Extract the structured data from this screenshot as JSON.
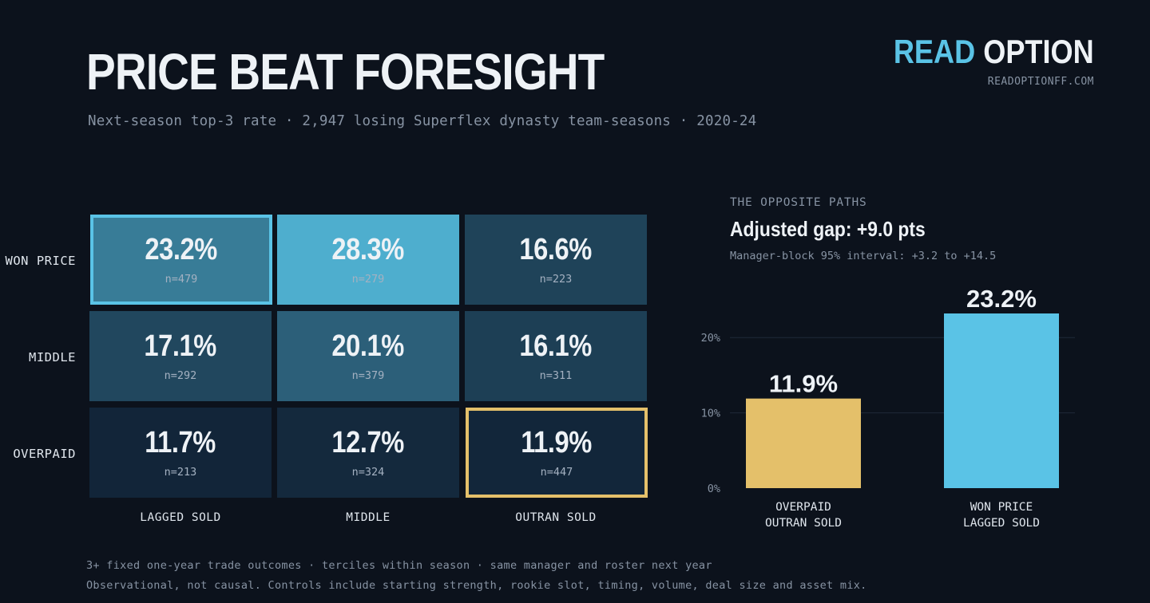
{
  "header": {
    "title": "PRICE BEAT FORESIGHT",
    "subtitle": "Next-season top-3 rate · 2,947 losing Superflex dynasty team-seasons · 2020-24",
    "brand_read": "READ",
    "brand_option": "OPTION",
    "site": "READOPTIONFF.COM"
  },
  "colors": {
    "accent_blue": "#5ac3e6",
    "accent_gold": "#e4c06a",
    "background": "#0c121c"
  },
  "chart_data": [
    {
      "type": "heatmap",
      "rows": [
        "WON PRICE",
        "MIDDLE",
        "OVERPAID"
      ],
      "columns": [
        "LAGGED SOLD",
        "MIDDLE",
        "OUTRAN SOLD"
      ],
      "cells": [
        [
          {
            "pct": "23.2%",
            "n": "n=479",
            "value": 23.2,
            "highlight": "blue"
          },
          {
            "pct": "28.3%",
            "n": "n=279",
            "value": 28.3
          },
          {
            "pct": "16.6%",
            "n": "n=223",
            "value": 16.6
          }
        ],
        [
          {
            "pct": "17.1%",
            "n": "n=292",
            "value": 17.1
          },
          {
            "pct": "20.1%",
            "n": "n=379",
            "value": 20.1
          },
          {
            "pct": "16.1%",
            "n": "n=311",
            "value": 16.1
          }
        ],
        [
          {
            "pct": "11.7%",
            "n": "n=213",
            "value": 11.7
          },
          {
            "pct": "12.7%",
            "n": "n=324",
            "value": 12.7
          },
          {
            "pct": "11.9%",
            "n": "n=447",
            "value": 11.9,
            "highlight": "gold"
          }
        ]
      ]
    },
    {
      "type": "bar",
      "kicker": "THE OPPOSITE PATHS",
      "title": "Adjusted gap: +9.0 pts",
      "note": "Manager-block 95% interval: +3.2 to +14.5",
      "categories": [
        [
          "OVERPAID",
          "OUTRAN SOLD"
        ],
        [
          "WON PRICE",
          "LAGGED SOLD"
        ]
      ],
      "values": [
        11.9,
        23.2
      ],
      "value_labels": [
        "11.9%",
        "23.2%"
      ],
      "colors": [
        "#e4c06a",
        "#5ac3e6"
      ],
      "yticks": [
        0,
        10,
        20
      ],
      "ytick_labels": [
        "0%",
        "10%",
        "20%"
      ],
      "ylim": [
        0,
        23.2
      ],
      "grid": true
    }
  ],
  "footer": {
    "line1": "3+ fixed one-year trade outcomes · terciles within season · same manager and roster next year",
    "line2": "Observational, not causal. Controls include starting strength, rookie slot, timing, volume, deal size and asset mix."
  }
}
